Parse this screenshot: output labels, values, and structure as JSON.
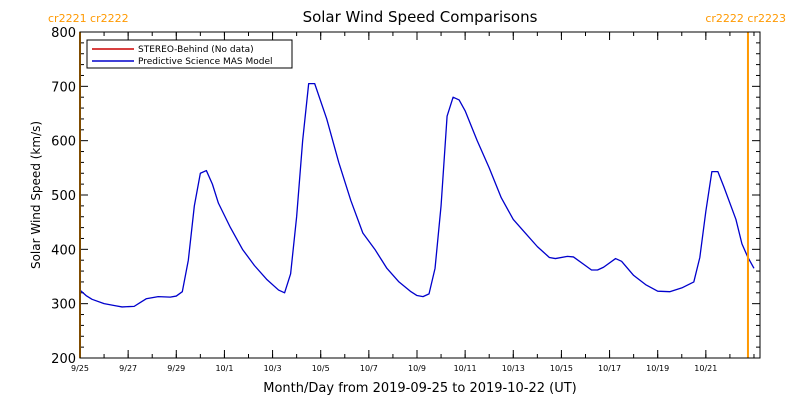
{
  "chart_data": {
    "type": "line",
    "title": "Solar Wind Speed Comparisons",
    "xlabel": "Month/Day from 2019-09-25 to 2019-10-22 (UT)",
    "ylabel": "Solar Wind Speed (km/s)",
    "xlim": [
      "2019-09-25",
      "2019-10-23T06:00"
    ],
    "ylim": [
      200,
      800
    ],
    "y_ticks": [
      200,
      300,
      400,
      500,
      600,
      700,
      800
    ],
    "x_ticks": [
      {
        "date": "2019-09-25",
        "label": "9/25"
      },
      {
        "date": "2019-09-27",
        "label": "9/27"
      },
      {
        "date": "2019-09-29",
        "label": "9/29"
      },
      {
        "date": "2019-10-01",
        "label": "10/1"
      },
      {
        "date": "2019-10-03",
        "label": "10/3"
      },
      {
        "date": "2019-10-05",
        "label": "10/5"
      },
      {
        "date": "2019-10-07",
        "label": "10/7"
      },
      {
        "date": "2019-10-09",
        "label": "10/9"
      },
      {
        "date": "2019-10-11",
        "label": "10/11"
      },
      {
        "date": "2019-10-13",
        "label": "10/13"
      },
      {
        "date": "2019-10-15",
        "label": "10/15"
      },
      {
        "date": "2019-10-17",
        "label": "10/17"
      },
      {
        "date": "2019-10-19",
        "label": "10/19"
      },
      {
        "date": "2019-10-21",
        "label": "10/21"
      }
    ],
    "legend": {
      "placement": "top-left",
      "entries": [
        {
          "name": "STEREO-Behind (No data)",
          "color": "#cc0000"
        },
        {
          "name": "Predictive Science MAS Model",
          "color": "#0000cc"
        }
      ]
    },
    "carrington_markers": [
      {
        "date": "2019-09-25",
        "label": "cr2221 cr2222",
        "color": "#ff9900",
        "align": "left"
      },
      {
        "date": "2019-10-22T18:00",
        "label": "cr2222 cr2223",
        "color": "#ff9900",
        "align": "right"
      }
    ],
    "series": [
      {
        "name": "Predictive Science MAS Model",
        "color": "#0000cc",
        "points": [
          [
            "2019-09-25T00:00",
            325
          ],
          [
            "2019-09-25T06:00",
            315
          ],
          [
            "2019-09-25T12:00",
            308
          ],
          [
            "2019-09-26T00:00",
            300
          ],
          [
            "2019-09-26T12:00",
            296
          ],
          [
            "2019-09-26T18:00",
            294
          ],
          [
            "2019-09-27T06:00",
            295
          ],
          [
            "2019-09-27T12:00",
            302
          ],
          [
            "2019-09-27T18:00",
            309
          ],
          [
            "2019-09-28T06:00",
            313
          ],
          [
            "2019-09-28T18:00",
            312
          ],
          [
            "2019-09-29T00:00",
            314
          ],
          [
            "2019-09-29T06:00",
            322
          ],
          [
            "2019-09-29T12:00",
            380
          ],
          [
            "2019-09-29T18:00",
            480
          ],
          [
            "2019-09-30T00:00",
            540
          ],
          [
            "2019-09-30T06:00",
            545
          ],
          [
            "2019-09-30T12:00",
            520
          ],
          [
            "2019-09-30T18:00",
            485
          ],
          [
            "2019-10-01T06:00",
            440
          ],
          [
            "2019-10-01T18:00",
            400
          ],
          [
            "2019-10-02T06:00",
            370
          ],
          [
            "2019-10-02T18:00",
            345
          ],
          [
            "2019-10-03T06:00",
            325
          ],
          [
            "2019-10-03T12:00",
            320
          ],
          [
            "2019-10-03T18:00",
            355
          ],
          [
            "2019-10-04T00:00",
            460
          ],
          [
            "2019-10-04T06:00",
            600
          ],
          [
            "2019-10-04T12:00",
            705
          ],
          [
            "2019-10-04T18:00",
            705
          ],
          [
            "2019-10-05T06:00",
            640
          ],
          [
            "2019-10-05T18:00",
            560
          ],
          [
            "2019-10-06T06:00",
            490
          ],
          [
            "2019-10-06T18:00",
            430
          ],
          [
            "2019-10-07T06:00",
            400
          ],
          [
            "2019-10-07T18:00",
            365
          ],
          [
            "2019-10-08T06:00",
            340
          ],
          [
            "2019-10-08T18:00",
            322
          ],
          [
            "2019-10-09T00:00",
            315
          ],
          [
            "2019-10-09T06:00",
            313
          ],
          [
            "2019-10-09T12:00",
            318
          ],
          [
            "2019-10-09T18:00",
            365
          ],
          [
            "2019-10-10T00:00",
            480
          ],
          [
            "2019-10-10T06:00",
            645
          ],
          [
            "2019-10-10T12:00",
            680
          ],
          [
            "2019-10-10T18:00",
            675
          ],
          [
            "2019-10-11T00:00",
            655
          ],
          [
            "2019-10-11T12:00",
            600
          ],
          [
            "2019-10-12T00:00",
            550
          ],
          [
            "2019-10-12T12:00",
            495
          ],
          [
            "2019-10-13T00:00",
            455
          ],
          [
            "2019-10-13T12:00",
            430
          ],
          [
            "2019-10-14T00:00",
            405
          ],
          [
            "2019-10-14T12:00",
            385
          ],
          [
            "2019-10-14T18:00",
            383
          ],
          [
            "2019-10-15T06:00",
            387
          ],
          [
            "2019-10-15T12:00",
            386
          ],
          [
            "2019-10-16T00:00",
            370
          ],
          [
            "2019-10-16T06:00",
            362
          ],
          [
            "2019-10-16T12:00",
            362
          ],
          [
            "2019-10-16T18:00",
            367
          ],
          [
            "2019-10-17T06:00",
            383
          ],
          [
            "2019-10-17T12:00",
            378
          ],
          [
            "2019-10-18T00:00",
            352
          ],
          [
            "2019-10-18T12:00",
            335
          ],
          [
            "2019-10-19T00:00",
            323
          ],
          [
            "2019-10-19T12:00",
            322
          ],
          [
            "2019-10-20T00:00",
            329
          ],
          [
            "2019-10-20T12:00",
            340
          ],
          [
            "2019-10-20T18:00",
            385
          ],
          [
            "2019-10-21T00:00",
            470
          ],
          [
            "2019-10-21T06:00",
            543
          ],
          [
            "2019-10-21T12:00",
            543
          ],
          [
            "2019-10-21T18:00",
            515
          ],
          [
            "2019-10-22T06:00",
            455
          ],
          [
            "2019-10-22T12:00",
            410
          ],
          [
            "2019-10-22T18:00",
            385
          ],
          [
            "2019-10-23T00:00",
            365
          ]
        ]
      }
    ]
  }
}
